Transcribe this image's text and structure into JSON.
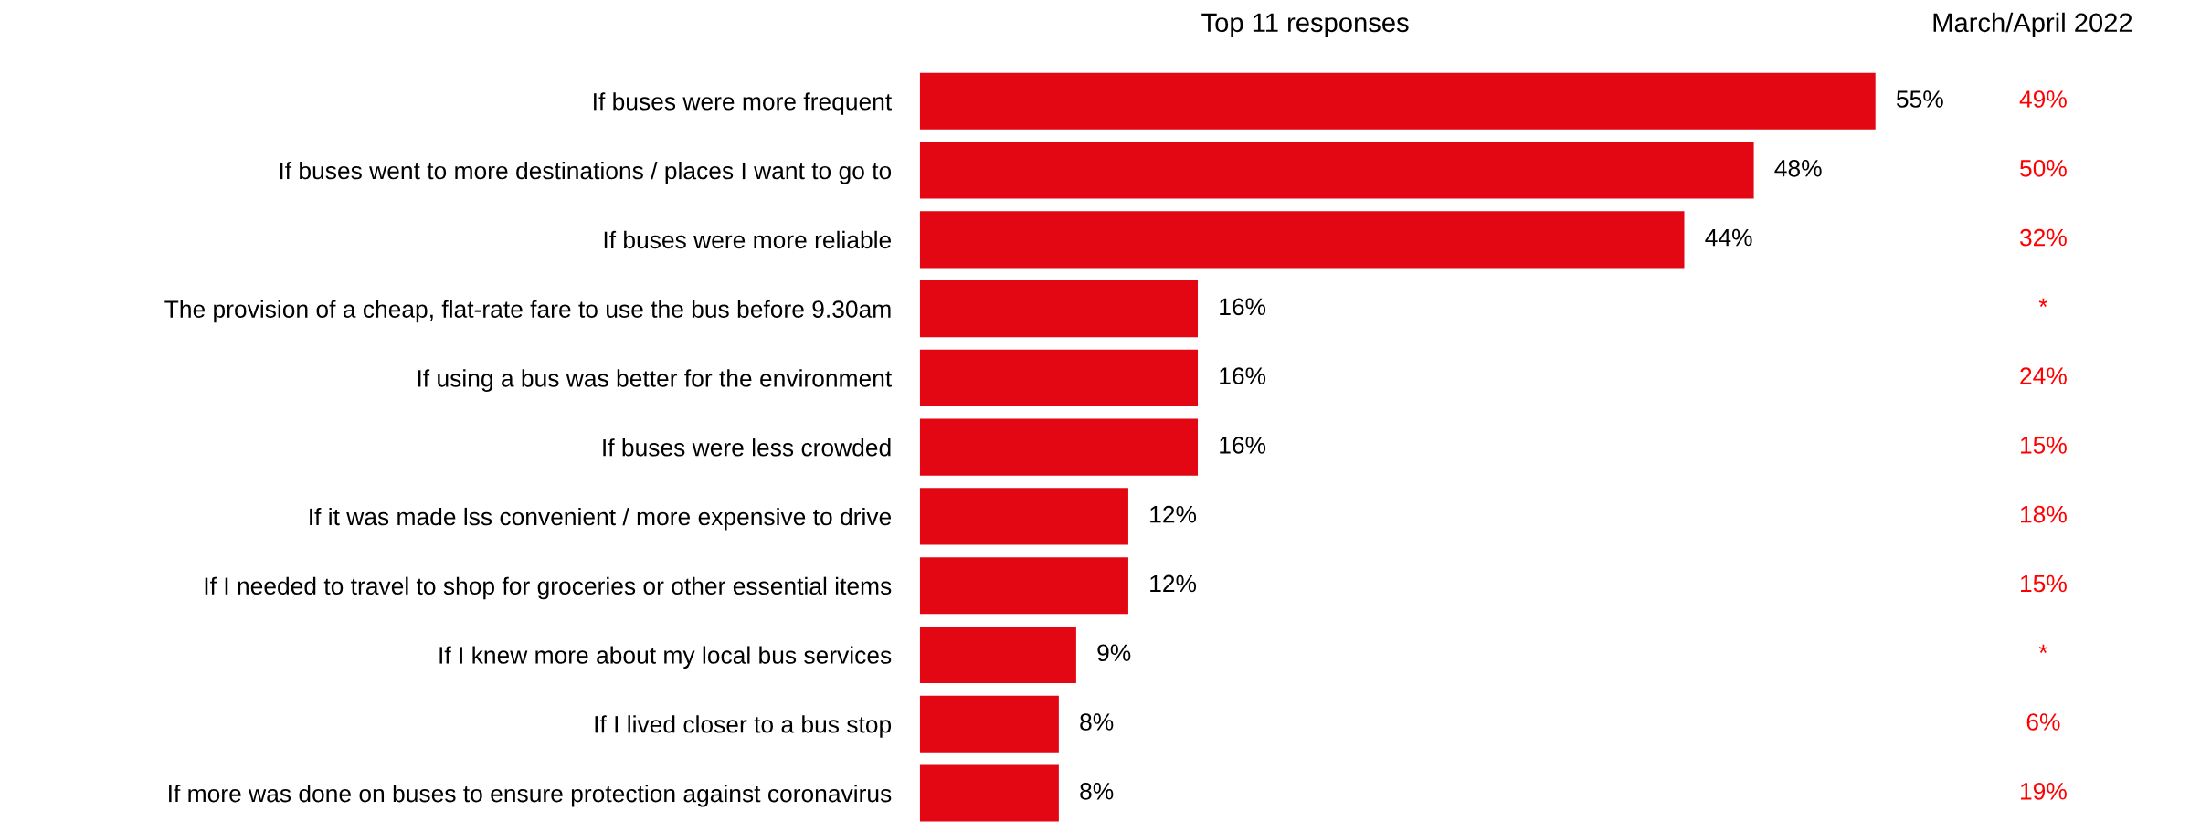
{
  "chart_data": {
    "type": "bar",
    "orientation": "horizontal",
    "title": "Top 11 responses",
    "data_labels": true,
    "color": "#e30613",
    "categories": [
      "If buses were more frequent",
      "If buses went to more destinations / places I want to go to",
      "If buses were more reliable",
      "The provision of a cheap, flat-rate fare to use the bus before 9.30am",
      "If using a bus was better for the environment",
      "If buses were less crowded",
      "If it was made lss convenient / more expensive to drive",
      "If I needed to travel to shop for groceries or other essential items",
      "If I knew more about my local bus services",
      "If I lived closer to a bus stop",
      "If more was done on buses to ensure protection against coronavirus"
    ],
    "values": [
      55,
      48,
      44,
      16,
      16,
      16,
      12,
      12,
      9,
      8,
      8
    ],
    "value_labels": [
      "55%",
      "48%",
      "44%",
      "16%",
      "16%",
      "16%",
      "12%",
      "12%",
      "9%",
      "8%",
      "8%"
    ],
    "annotations": [
      "March/April 2022",
      "49%",
      "50%",
      "32%",
      "*",
      "24%",
      "15%",
      "18%",
      "15%",
      "*",
      "6%",
      "19%"
    ]
  }
}
